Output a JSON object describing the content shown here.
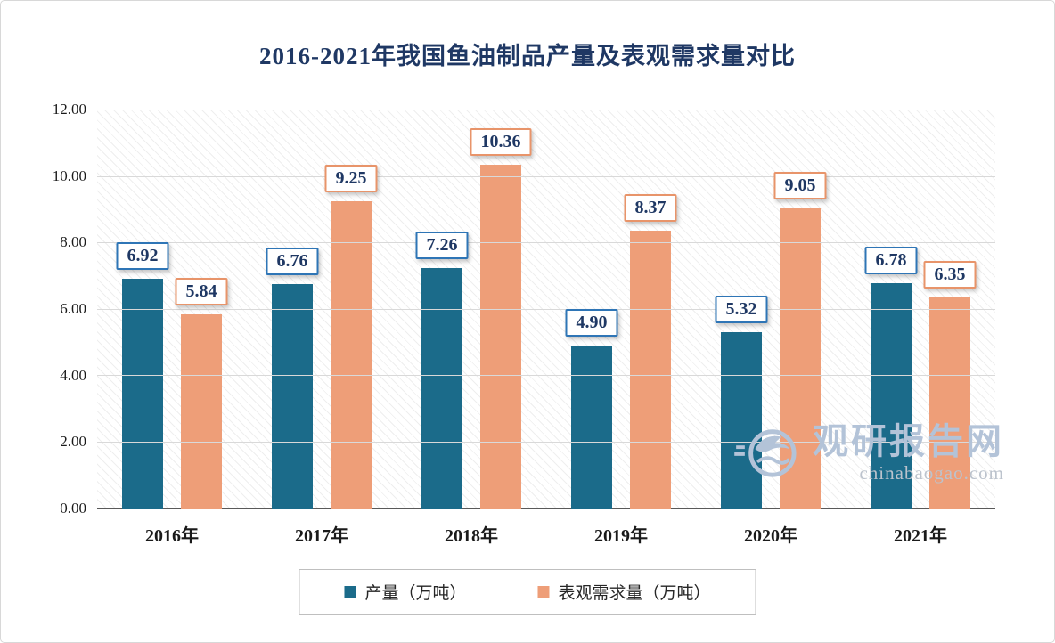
{
  "chart_data": {
    "type": "bar",
    "title": "2016-2021年我国鱼油制品产量及表观需求量对比",
    "categories": [
      "2016年",
      "2017年",
      "2018年",
      "2019年",
      "2020年",
      "2021年"
    ],
    "series": [
      {
        "key": "production",
        "name": "产量（万吨）",
        "color": "#1b6b8a",
        "label_border": "#2e75b6",
        "values": [
          6.92,
          6.76,
          7.26,
          4.9,
          5.32,
          6.78
        ]
      },
      {
        "key": "demand",
        "name": "表观需求量（万吨）",
        "color": "#ee9e78",
        "label_border": "#e8946a",
        "values": [
          5.84,
          9.25,
          10.36,
          8.37,
          9.05,
          6.35
        ]
      }
    ],
    "ylim": [
      0,
      12
    ],
    "y_ticks": [
      "0.00",
      "2.00",
      "4.00",
      "6.00",
      "8.00",
      "10.00",
      "12.00"
    ],
    "grid": true,
    "legend_position": "bottom",
    "value_label_text_color": "#1f3864"
  },
  "watermark": {
    "name": "观研报告网",
    "domain": "chinabaogao.com",
    "color": "#b3c3d8"
  }
}
